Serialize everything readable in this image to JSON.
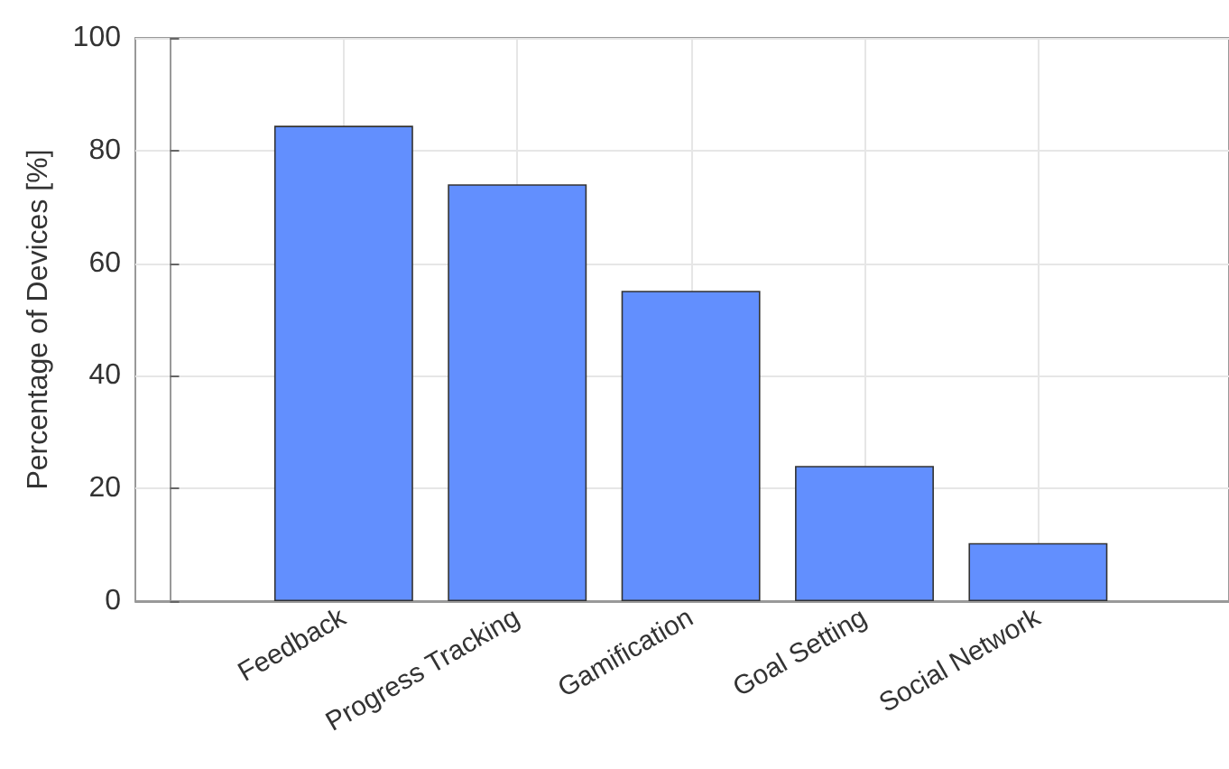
{
  "chart_data": {
    "type": "bar",
    "ylabel": "Percentage of Devices [%]",
    "categories": [
      "Feedback",
      "Progress Tracking",
      "Gamification",
      "Goal Setting",
      "Social Network"
    ],
    "values": [
      84.4,
      74,
      55.1,
      24,
      10.3
    ],
    "color": "#628ffe",
    "ylim": [
      0,
      100
    ],
    "yticks": [
      0,
      20,
      40,
      60,
      80,
      100
    ],
    "grid": true
  }
}
